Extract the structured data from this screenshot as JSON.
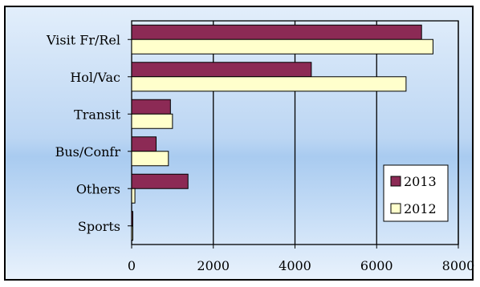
{
  "chart_data": {
    "type": "bar",
    "orientation": "horizontal",
    "categories": [
      "Visit Fr/Rel",
      "Hol/Vac",
      "Transit",
      "Bus/Confr",
      "Others",
      "Sports"
    ],
    "series": [
      {
        "name": "2013",
        "color": "#8c2a55",
        "values": [
          7100,
          4400,
          950,
          600,
          1380,
          20
        ]
      },
      {
        "name": "2012",
        "color": "#ffffcc",
        "values": [
          7380,
          6720,
          1000,
          900,
          80,
          25
        ]
      }
    ],
    "x_ticks": [
      "0",
      "2000",
      "4000",
      "6000",
      "8000"
    ],
    "xlim": [
      0,
      8000
    ],
    "grid": true,
    "legend_position": "bottom-right",
    "title": "",
    "xlabel": "",
    "ylabel": ""
  }
}
